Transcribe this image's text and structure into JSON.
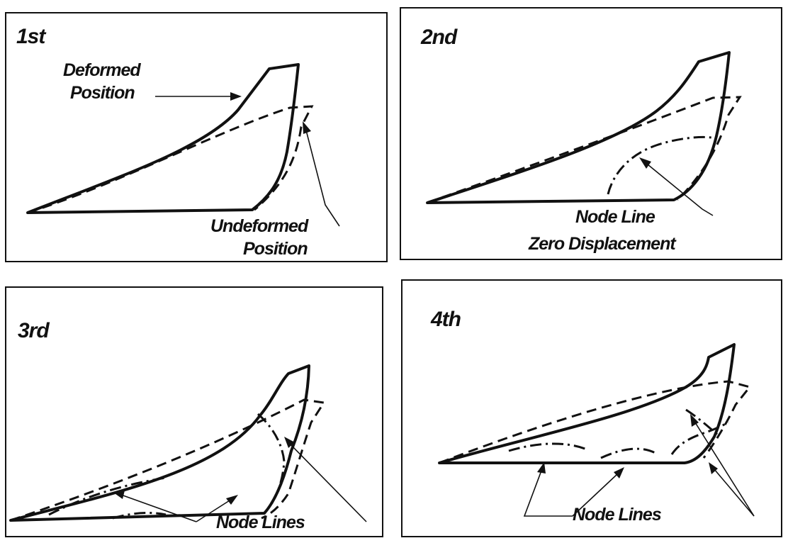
{
  "panels": [
    {
      "mode_label": "1st",
      "labels": {
        "deformed_line1": "Deformed",
        "deformed_line2": "Position",
        "undeformed_line1": "Undeformed",
        "undeformed_line2": "Position"
      }
    },
    {
      "mode_label": "2nd",
      "labels": {
        "node_line": "Node Line",
        "zero_displacement": "Zero Displacement"
      }
    },
    {
      "mode_label": "3rd",
      "labels": {
        "node_lines": "Node Lines"
      }
    },
    {
      "mode_label": "4th",
      "labels": {
        "node_lines": "Node Lines"
      }
    }
  ],
  "legend_styles": {
    "deformed": "dashed",
    "undeformed": "solid",
    "node_line": "dash-dot"
  }
}
